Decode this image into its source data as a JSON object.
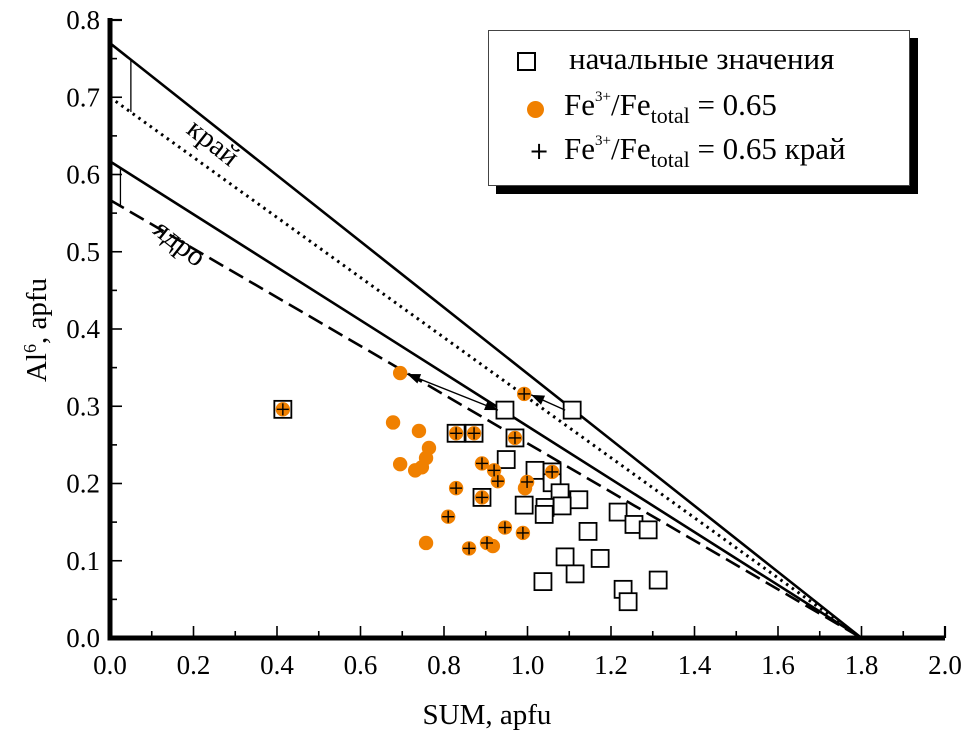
{
  "chart_data": {
    "type": "scatter",
    "title": "",
    "xlabel": "SUM, apfu",
    "ylabel": "Al6, apfu",
    "ylabel_base": "Al",
    "ylabel_sup": "6",
    "ylabel_rest": ", apfu",
    "xlim": [
      0.0,
      2.0
    ],
    "ylim": [
      0.0,
      0.8
    ],
    "x_ticks": [
      "0.0",
      "0.2",
      "0.4",
      "0.6",
      "0.8",
      "1.0",
      "1.2",
      "1.4",
      "1.6",
      "1.8",
      "2.0"
    ],
    "y_ticks": [
      "0.0",
      "0.1",
      "0.2",
      "0.3",
      "0.4",
      "0.5",
      "0.6",
      "0.7",
      "0.8"
    ],
    "grid": false,
    "legend_position": "top-right",
    "accent_color": "#f08000",
    "legend": [
      {
        "symbol": "square",
        "label": "начальные значения"
      },
      {
        "symbol": "circle",
        "label_main": "Fe",
        "label_sup": "3+",
        "label_mid": "/Fe",
        "label_sub": "total",
        "label_end": " = 0.65"
      },
      {
        "symbol": "plus",
        "label_main": "Fe",
        "label_sup": "3+",
        "label_mid": "/Fe",
        "label_sub": "total",
        "label_end": " = 0.65 край"
      }
    ],
    "lines": [
      {
        "name": "edge-upper",
        "style": "solid",
        "points": [
          [
            0.0,
            0.77
          ],
          [
            1.8,
            0.0
          ]
        ]
      },
      {
        "name": "edge-lower",
        "style": "dotted",
        "points": [
          [
            0.0,
            0.7
          ],
          [
            1.8,
            0.0
          ]
        ]
      },
      {
        "name": "core-upper",
        "style": "solid",
        "points": [
          [
            0.0,
            0.617
          ],
          [
            1.8,
            0.0
          ]
        ]
      },
      {
        "name": "core-lower",
        "style": "dashed",
        "points": [
          [
            0.0,
            0.567
          ],
          [
            1.8,
            0.0
          ]
        ]
      }
    ],
    "brackets": [
      {
        "x": 0.05,
        "y_from": 0.749,
        "y_to": 0.681
      },
      {
        "x": 0.025,
        "y_from": 0.608,
        "y_to": 0.559
      }
    ],
    "line_annotations": [
      {
        "text": "край",
        "x": 0.18,
        "y": 0.655
      },
      {
        "text": "ядро",
        "x": 0.1,
        "y": 0.525
      }
    ],
    "arrows": [
      {
        "from": [
          0.946,
          0.295
        ],
        "to": [
          0.695,
          0.343
        ],
        "double": true
      },
      {
        "from": [
          1.107,
          0.295
        ],
        "to": [
          0.992,
          0.316
        ],
        "double": false
      }
    ],
    "series": [
      {
        "name": "начальные значения",
        "marker": "square",
        "points": [
          [
            0.414,
            0.296
          ],
          [
            0.946,
            0.295
          ],
          [
            1.107,
            0.295
          ],
          [
            0.829,
            0.265
          ],
          [
            0.872,
            0.265
          ],
          [
            0.97,
            0.259
          ],
          [
            0.949,
            0.231
          ],
          [
            1.018,
            0.217
          ],
          [
            1.059,
            0.215
          ],
          [
            1.059,
            0.201
          ],
          [
            1.078,
            0.188
          ],
          [
            1.123,
            0.179
          ],
          [
            0.992,
            0.172
          ],
          [
            1.042,
            0.169
          ],
          [
            1.04,
            0.16
          ],
          [
            1.083,
            0.171
          ],
          [
            0.891,
            0.182
          ],
          [
            1.217,
            0.163
          ],
          [
            1.255,
            0.147
          ],
          [
            1.289,
            0.14
          ],
          [
            1.145,
            0.138
          ],
          [
            1.09,
            0.105
          ],
          [
            1.174,
            0.103
          ],
          [
            1.114,
            0.083
          ],
          [
            1.037,
            0.073
          ],
          [
            1.229,
            0.063
          ],
          [
            1.241,
            0.047
          ],
          [
            1.313,
            0.075
          ]
        ]
      },
      {
        "name": "Fe3+/Fetotal = 0.65",
        "marker": "circle",
        "color": "#f08000",
        "points": [
          [
            0.414,
            0.296
          ],
          [
            0.695,
            0.343
          ],
          [
            0.992,
            0.316
          ],
          [
            0.829,
            0.265
          ],
          [
            0.872,
            0.265
          ],
          [
            0.97,
            0.259
          ],
          [
            0.678,
            0.279
          ],
          [
            0.74,
            0.268
          ],
          [
            0.764,
            0.246
          ],
          [
            0.757,
            0.233
          ],
          [
            0.747,
            0.221
          ],
          [
            0.731,
            0.217
          ],
          [
            0.695,
            0.225
          ],
          [
            0.891,
            0.226
          ],
          [
            0.92,
            0.217
          ],
          [
            0.929,
            0.203
          ],
          [
            0.999,
            0.202
          ],
          [
            0.994,
            0.194
          ],
          [
            1.059,
            0.215
          ],
          [
            0.829,
            0.194
          ],
          [
            0.891,
            0.182
          ],
          [
            0.81,
            0.157
          ],
          [
            0.946,
            0.143
          ],
          [
            0.989,
            0.136
          ],
          [
            0.757,
            0.123
          ],
          [
            0.86,
            0.116
          ],
          [
            0.903,
            0.123
          ],
          [
            0.917,
            0.119
          ]
        ]
      },
      {
        "name": "Fe3+/Fetotal = 0.65 край",
        "marker": "plus",
        "points": [
          [
            0.414,
            0.296
          ],
          [
            0.992,
            0.316
          ],
          [
            0.829,
            0.265
          ],
          [
            0.872,
            0.265
          ],
          [
            0.97,
            0.259
          ],
          [
            0.891,
            0.226
          ],
          [
            0.92,
            0.217
          ],
          [
            0.929,
            0.203
          ],
          [
            0.999,
            0.202
          ],
          [
            1.059,
            0.215
          ],
          [
            0.829,
            0.194
          ],
          [
            0.891,
            0.182
          ],
          [
            0.81,
            0.157
          ],
          [
            0.946,
            0.143
          ],
          [
            0.989,
            0.136
          ],
          [
            0.86,
            0.116
          ],
          [
            0.903,
            0.123
          ]
        ]
      }
    ]
  }
}
